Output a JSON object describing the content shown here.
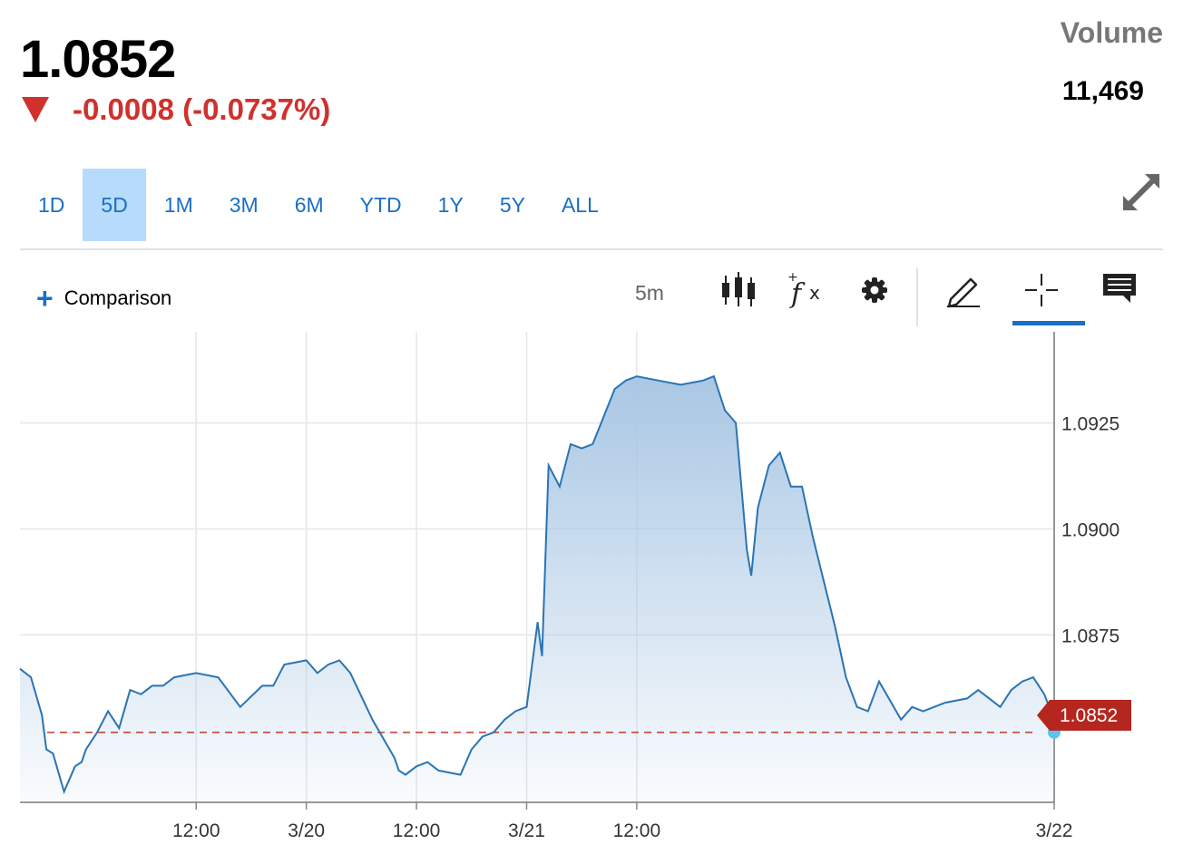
{
  "quote": {
    "price": "1.0852",
    "change": "-0.0008 (-0.0737%)",
    "direction": "down",
    "volume_label": "Volume",
    "volume_value": "11,469"
  },
  "range_tabs": [
    {
      "label": "1D",
      "active": false
    },
    {
      "label": "5D",
      "active": true
    },
    {
      "label": "1M",
      "active": false
    },
    {
      "label": "3M",
      "active": false
    },
    {
      "label": "6M",
      "active": false
    },
    {
      "label": "YTD",
      "active": false
    },
    {
      "label": "1Y",
      "active": false
    },
    {
      "label": "5Y",
      "active": false
    },
    {
      "label": "ALL",
      "active": false
    }
  ],
  "toolbar": {
    "comparison_label": "Comparison",
    "interval": "5m",
    "icons": [
      "candlestick-icon",
      "function-icon",
      "gear-icon",
      "pencil-icon",
      "crosshair-icon",
      "comment-icon"
    ],
    "active_tool": "crosshair-icon"
  },
  "colors": {
    "accent": "#1a6fc4",
    "line": "#2a74b3",
    "area_top": "#a9c7e4",
    "down": "#d0312d",
    "last_dot": "#5cc2f2",
    "last_tag": "#b5261f"
  },
  "chart_data": {
    "type": "area",
    "x_tick_labels": [
      "12:00",
      "3/20",
      "12:00",
      "3/21",
      "12:00",
      "3/22"
    ],
    "y_tick_labels": [
      "1.0925",
      "1.0900",
      "1.0875"
    ],
    "y_ticks": [
      1.0925,
      1.09,
      1.0875
    ],
    "x_range": [
      0,
      4.695
    ],
    "ylim": [
      1.08355,
      1.09465
    ],
    "grid": true,
    "last_value": "1.0852",
    "previous_close": 1.0852,
    "series": [
      {
        "x": [
          0,
          0.05,
          0.1,
          0.12,
          0.15,
          0.2,
          0.25,
          0.28,
          0.3,
          0.35,
          0.4,
          0.45,
          0.5,
          0.55,
          0.6,
          0.65,
          0.7,
          0.8,
          0.9,
          1.0,
          1.1,
          1.15,
          1.2,
          1.3,
          1.35,
          1.4,
          1.45,
          1.5,
          1.6,
          1.7,
          1.72,
          1.75,
          1.8,
          1.85,
          1.9,
          2.0,
          2.05,
          2.1,
          2.15,
          2.2,
          2.25,
          2.3,
          2.35,
          2.37,
          2.4,
          2.45,
          2.5,
          2.55,
          2.6,
          2.7,
          2.75,
          2.8,
          2.9,
          3.0,
          3.1,
          3.15,
          3.2,
          3.25,
          3.3,
          3.32,
          3.35,
          3.4,
          3.45,
          3.5,
          3.55,
          3.6,
          3.7,
          3.75,
          3.8,
          3.85,
          3.9,
          4.0,
          4.05,
          4.1,
          4.2,
          4.3,
          4.35,
          4.4,
          4.45,
          4.5,
          4.55,
          4.6,
          4.65,
          4.68,
          4.695
        ],
        "y": [
          1.0867,
          1.0865,
          1.0856,
          1.0848,
          1.0847,
          1.0838,
          1.0844,
          1.0845,
          1.0848,
          1.0852,
          1.0857,
          1.0853,
          1.0862,
          1.0861,
          1.0863,
          1.0863,
          1.0865,
          1.0866,
          1.0865,
          1.0858,
          1.0863,
          1.0863,
          1.0868,
          1.0869,
          1.0866,
          1.0868,
          1.0869,
          1.0866,
          1.0855,
          1.0846,
          1.0843,
          1.0842,
          1.0844,
          1.0845,
          1.0843,
          1.0842,
          1.0848,
          1.0851,
          1.0852,
          1.0855,
          1.0857,
          1.0858,
          1.0878,
          1.087,
          1.0915,
          1.091,
          1.092,
          1.0919,
          1.092,
          1.0933,
          1.0935,
          1.0936,
          1.0935,
          1.0934,
          1.0935,
          1.0936,
          1.0928,
          1.0925,
          1.0895,
          1.0889,
          1.0905,
          1.0915,
          1.0918,
          1.091,
          1.091,
          1.0898,
          1.0877,
          1.0865,
          1.0858,
          1.0857,
          1.0864,
          1.0855,
          1.0858,
          1.0857,
          1.0859,
          1.086,
          1.0862,
          1.086,
          1.0858,
          1.0862,
          1.0864,
          1.0865,
          1.0861,
          1.0857,
          1.0852
        ]
      }
    ]
  }
}
